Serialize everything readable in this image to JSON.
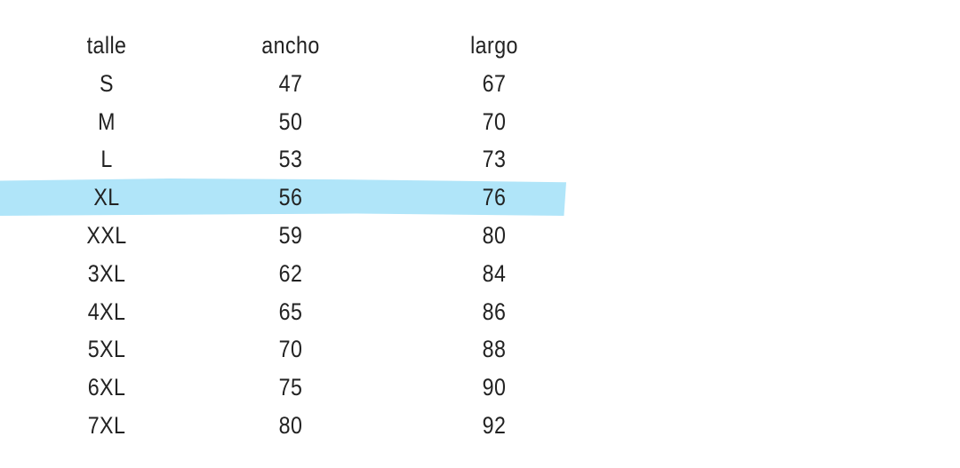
{
  "table": {
    "headers": [
      "talle",
      "ancho",
      "largo"
    ],
    "rows": [
      [
        "S",
        "47",
        "67"
      ],
      [
        "M",
        "50",
        "70"
      ],
      [
        "L",
        "53",
        "73"
      ],
      [
        "XL",
        "56",
        "76"
      ],
      [
        "XXL",
        "59",
        "80"
      ],
      [
        "3XL",
        "62",
        "84"
      ],
      [
        "4XL",
        "65",
        "86"
      ],
      [
        "5XL",
        "70",
        "88"
      ],
      [
        "6XL",
        "75",
        "90"
      ],
      [
        "7XL",
        "80",
        "92"
      ]
    ],
    "highlighted_size": "XL"
  },
  "colors": {
    "highlight": "#b0e5f9",
    "text": "#222222",
    "background": "#ffffff"
  }
}
